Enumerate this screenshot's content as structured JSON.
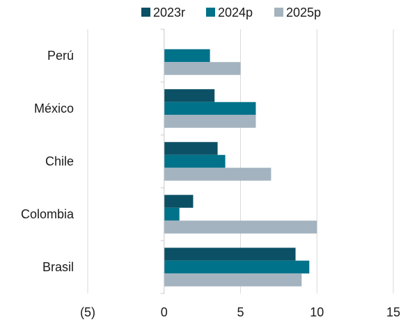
{
  "chart_data": {
    "type": "bar",
    "orientation": "horizontal",
    "title": "",
    "xlabel": "",
    "ylabel": "",
    "categories": [
      "Perú",
      "México",
      "Chile",
      "Colombia",
      "Brasil"
    ],
    "series": [
      {
        "name": "2023r",
        "color": "#0b5064",
        "values": [
          0,
          3.3,
          3.5,
          1.9,
          8.6
        ]
      },
      {
        "name": "2024p",
        "color": "#00728a",
        "values": [
          3.0,
          6.0,
          4.0,
          1.0,
          9.5
        ]
      },
      {
        "name": "2025p",
        "color": "#a3b3bf",
        "values": [
          5.0,
          6.0,
          7.0,
          10.0,
          9.0
        ]
      }
    ],
    "xlim": [
      -5,
      15
    ],
    "xticks": [
      -5,
      0,
      5,
      10,
      15
    ],
    "xtick_labels": [
      "(5)",
      "0",
      "5",
      "10",
      "15"
    ],
    "grid": "vertical",
    "grid_color": "#d9d9d9",
    "legend_position": "top"
  }
}
